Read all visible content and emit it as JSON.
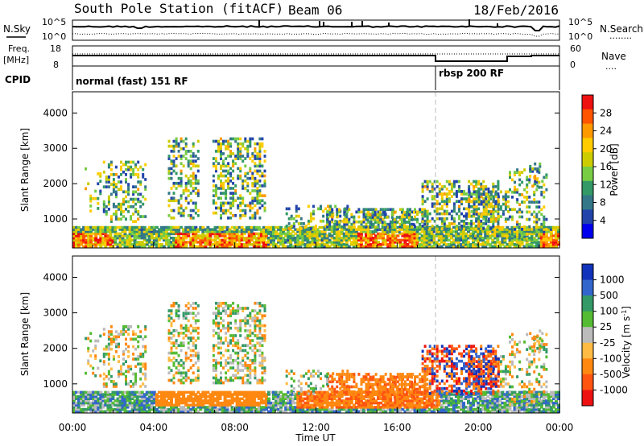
{
  "header": {
    "station": "South Pole Station (fitACF)",
    "beam": "Beam 06",
    "date": "18/Feb/2016"
  },
  "noise_panel": {
    "left_label": "N.Sky",
    "right_label": "N.Search",
    "right_dots": "........",
    "left_ticks": [
      "10^5",
      "10^0"
    ],
    "right_ticks": [
      "10^5",
      "10^0"
    ]
  },
  "freq_panel": {
    "left_label_line1": "Freq.",
    "left_label_line2": "[MHz]",
    "right_label": "Nave",
    "right_dots": "....",
    "left_ticks": [
      "18",
      "8"
    ],
    "right_ticks": [
      "60",
      "0"
    ]
  },
  "cpid_panel": {
    "label": "CPID",
    "modes": [
      "normal (fast) 151 RF",
      "rbsp 200 RF"
    ]
  },
  "chart_data": [
    {
      "type": "heatmap",
      "title": "",
      "xlabel": "Time UT",
      "ylabel": "Slant Range [km]",
      "x_tick_labels": [
        "00:00",
        "04:00",
        "08:00",
        "12:00",
        "16:00",
        "20:00",
        "00:00"
      ],
      "y_ticks": [
        1000,
        2000,
        3000,
        4000
      ],
      "ylim": [
        180,
        4600
      ],
      "xlim_hours": [
        0,
        24
      ],
      "colorbar_label": "Power [dB]",
      "colorbar_ticks": [
        "28",
        "24",
        "20",
        "16",
        "12",
        "8",
        "4"
      ],
      "colorbar_colors": [
        "#ee1111",
        "#ff5500",
        "#ff9900",
        "#ffcc00",
        "#cccc00",
        "#77cc44",
        "#339966",
        "#337788",
        "#2244aa",
        "#0000ee"
      ],
      "mode_change_hour": 18
    },
    {
      "type": "heatmap",
      "title": "",
      "xlabel": "Time UT",
      "ylabel": "Slant Range [km]",
      "x_tick_labels": [
        "00:00",
        "04:00",
        "08:00",
        "12:00",
        "16:00",
        "20:00",
        "00:00"
      ],
      "y_ticks": [
        1000,
        2000,
        3000,
        4000
      ],
      "ylim": [
        180,
        4600
      ],
      "xlim_hours": [
        0,
        24
      ],
      "colorbar_label": "Velocity [m s^-1]",
      "colorbar_ticks": [
        "1000",
        "500",
        "100",
        "25",
        "-25",
        "-100",
        "-500",
        "-1000"
      ],
      "colorbar_colors": [
        "#1133bb",
        "#3366cc",
        "#339966",
        "#55bb33",
        "#bbbbbb",
        "#ffbb44",
        "#ff8811",
        "#ff5511",
        "#ee1111"
      ],
      "mode_change_hour": 18
    }
  ]
}
